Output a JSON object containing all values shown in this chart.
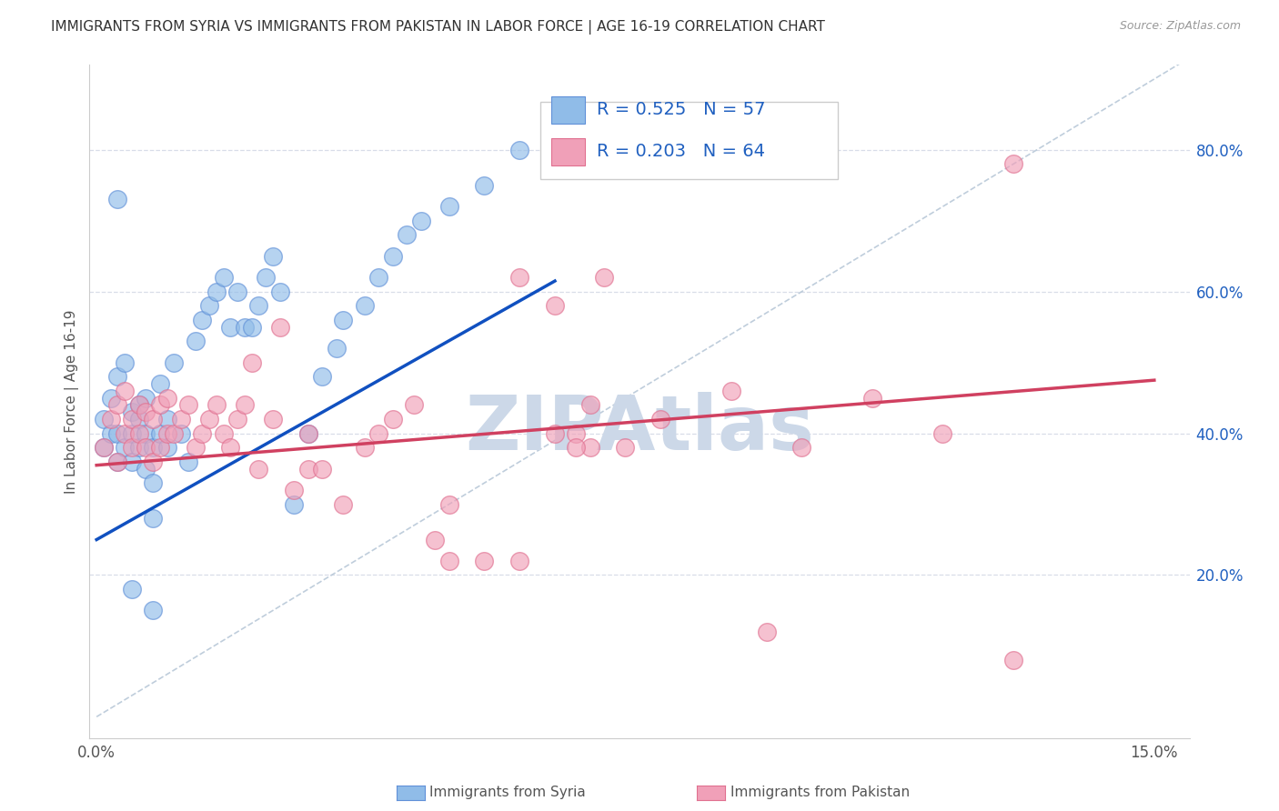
{
  "title": "IMMIGRANTS FROM SYRIA VS IMMIGRANTS FROM PAKISTAN IN LABOR FORCE | AGE 16-19 CORRELATION CHART",
  "source": "Source: ZipAtlas.com",
  "ylabel": "In Labor Force | Age 16-19",
  "xlim": [
    -0.001,
    0.155
  ],
  "ylim": [
    -0.03,
    0.92
  ],
  "plot_xlim": [
    0.0,
    0.15
  ],
  "xtick_positions": [
    0.0,
    0.03,
    0.06,
    0.09,
    0.12,
    0.15
  ],
  "xticklabels": [
    "0.0%",
    "",
    "",
    "",
    "",
    "15.0%"
  ],
  "yticks_right": [
    0.2,
    0.4,
    0.6,
    0.8
  ],
  "ytick_right_labels": [
    "20.0%",
    "40.0%",
    "60.0%",
    "80.0%"
  ],
  "syria_color": "#90bce8",
  "syria_edge_color": "#6090d8",
  "pakistan_color": "#f0a0b8",
  "pakistan_edge_color": "#e07090",
  "syria_line_color": "#1050c0",
  "pakistan_line_color": "#d04060",
  "diag_color": "#b8c8d8",
  "grid_color": "#d8dde8",
  "syria_R": 0.525,
  "syria_N": 57,
  "pakistan_R": 0.203,
  "pakistan_N": 64,
  "watermark": "ZIPAtlas",
  "watermark_color": "#ccd8e8",
  "legend_text_color": "#2060c0",
  "syria_x": [
    0.001,
    0.001,
    0.002,
    0.002,
    0.003,
    0.003,
    0.003,
    0.004,
    0.004,
    0.005,
    0.005,
    0.005,
    0.006,
    0.006,
    0.006,
    0.007,
    0.007,
    0.007,
    0.008,
    0.008,
    0.008,
    0.009,
    0.009,
    0.01,
    0.01,
    0.011,
    0.012,
    0.013,
    0.014,
    0.015,
    0.016,
    0.017,
    0.018,
    0.019,
    0.02,
    0.021,
    0.022,
    0.023,
    0.024,
    0.025,
    0.026,
    0.028,
    0.03,
    0.032,
    0.034,
    0.035,
    0.038,
    0.04,
    0.042,
    0.044,
    0.046,
    0.05,
    0.055,
    0.06,
    0.003,
    0.005,
    0.008
  ],
  "syria_y": [
    0.38,
    0.42,
    0.4,
    0.45,
    0.36,
    0.4,
    0.48,
    0.38,
    0.5,
    0.36,
    0.4,
    0.43,
    0.38,
    0.42,
    0.44,
    0.35,
    0.4,
    0.45,
    0.28,
    0.33,
    0.38,
    0.4,
    0.47,
    0.38,
    0.42,
    0.5,
    0.4,
    0.36,
    0.53,
    0.56,
    0.58,
    0.6,
    0.62,
    0.55,
    0.6,
    0.55,
    0.55,
    0.58,
    0.62,
    0.65,
    0.6,
    0.3,
    0.4,
    0.48,
    0.52,
    0.56,
    0.58,
    0.62,
    0.65,
    0.68,
    0.7,
    0.72,
    0.75,
    0.8,
    0.73,
    0.18,
    0.15
  ],
  "pakistan_x": [
    0.001,
    0.002,
    0.003,
    0.003,
    0.004,
    0.004,
    0.005,
    0.005,
    0.006,
    0.006,
    0.007,
    0.007,
    0.008,
    0.008,
    0.009,
    0.009,
    0.01,
    0.01,
    0.011,
    0.012,
    0.013,
    0.014,
    0.015,
    0.016,
    0.017,
    0.018,
    0.019,
    0.02,
    0.021,
    0.022,
    0.023,
    0.025,
    0.026,
    0.028,
    0.03,
    0.03,
    0.032,
    0.035,
    0.038,
    0.04,
    0.042,
    0.045,
    0.048,
    0.05,
    0.055,
    0.06,
    0.065,
    0.068,
    0.07,
    0.075,
    0.08,
    0.09,
    0.095,
    0.1,
    0.11,
    0.12,
    0.13,
    0.13,
    0.05,
    0.07,
    0.072,
    0.068,
    0.065,
    0.06
  ],
  "pakistan_y": [
    0.38,
    0.42,
    0.36,
    0.44,
    0.4,
    0.46,
    0.38,
    0.42,
    0.4,
    0.44,
    0.38,
    0.43,
    0.36,
    0.42,
    0.38,
    0.44,
    0.4,
    0.45,
    0.4,
    0.42,
    0.44,
    0.38,
    0.4,
    0.42,
    0.44,
    0.4,
    0.38,
    0.42,
    0.44,
    0.5,
    0.35,
    0.42,
    0.55,
    0.32,
    0.35,
    0.4,
    0.35,
    0.3,
    0.38,
    0.4,
    0.42,
    0.44,
    0.25,
    0.3,
    0.22,
    0.22,
    0.4,
    0.4,
    0.44,
    0.38,
    0.42,
    0.46,
    0.12,
    0.38,
    0.45,
    0.4,
    0.78,
    0.08,
    0.22,
    0.38,
    0.62,
    0.38,
    0.58,
    0.62
  ],
  "syria_trend_x0": 0.0,
  "syria_trend_y0": 0.25,
  "syria_trend_x1": 0.065,
  "syria_trend_y1": 0.615,
  "pakistan_trend_x0": 0.0,
  "pakistan_trend_y0": 0.355,
  "pakistan_trend_x1": 0.15,
  "pakistan_trend_y1": 0.475
}
